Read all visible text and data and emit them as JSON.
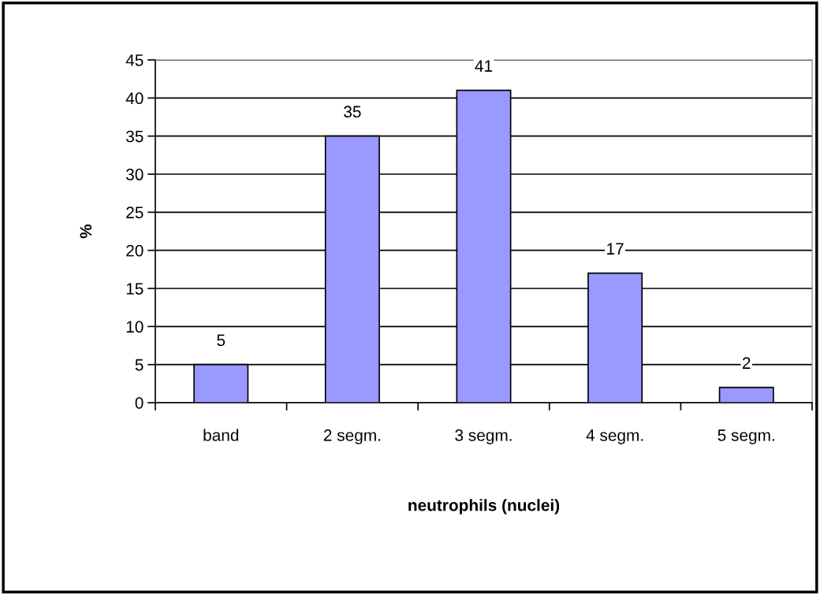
{
  "chart_data": {
    "type": "bar",
    "xlabel": "neutrophils (nuclei)",
    "ylabel": "%",
    "categories": [
      "band",
      "2 segm.",
      "3 segm.",
      "4 segm.",
      "5 segm."
    ],
    "values": [
      5,
      35,
      41,
      17,
      2
    ],
    "color": "#9999ff",
    "ylim": [
      0,
      45
    ],
    "yticks": [
      0,
      5,
      10,
      15,
      20,
      25,
      30,
      35,
      40,
      45
    ],
    "grid": "y",
    "data_labels": true
  }
}
